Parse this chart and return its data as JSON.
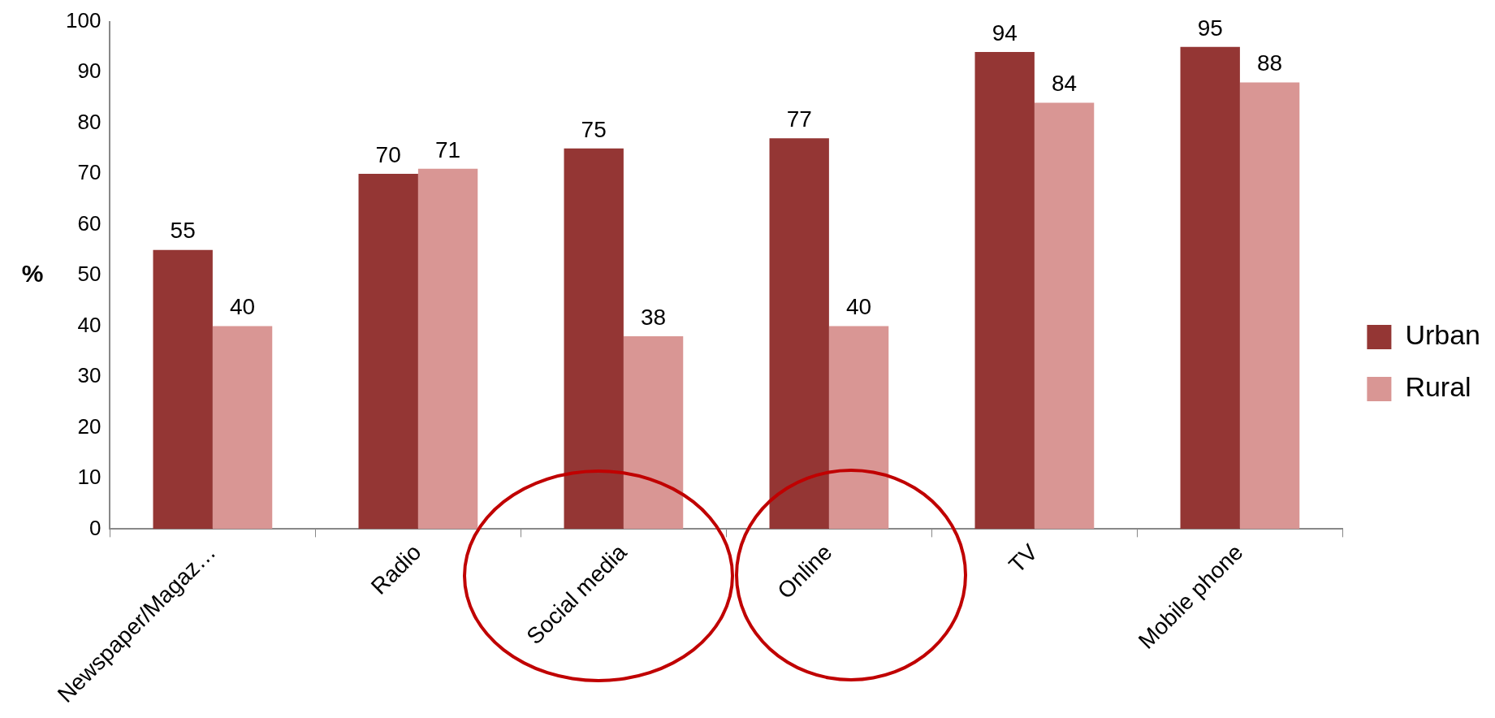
{
  "chart_data": {
    "type": "bar",
    "ylabel": "%",
    "categories": [
      "Newspaper/Magaz…",
      "Radio",
      "Social media",
      "Online",
      "TV",
      "Mobile phone"
    ],
    "series": [
      {
        "name": "Urban",
        "color": "#943634",
        "values": [
          55,
          70,
          75,
          77,
          94,
          95
        ]
      },
      {
        "name": "Rural",
        "color": "#d99694",
        "values": [
          40,
          71,
          38,
          40,
          84,
          88
        ]
      }
    ],
    "ylim": [
      0,
      100
    ],
    "yticks": [
      0,
      10,
      20,
      30,
      40,
      50,
      60,
      70,
      80,
      90,
      100
    ],
    "grid": false,
    "legend": "right",
    "data_labels": true
  }
}
